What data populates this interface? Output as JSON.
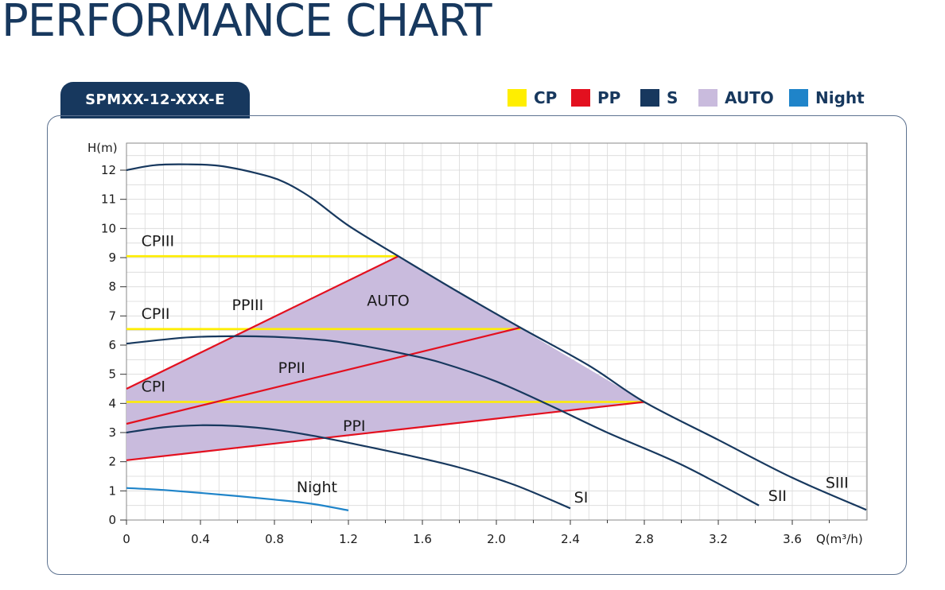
{
  "page_title": "PERFORMANCE CHART",
  "model_tab": "SPMXX-12-XXX-E",
  "legend": [
    {
      "label": "CP",
      "color": "#ffee00",
      "icon": "yellow-swatch"
    },
    {
      "label": "PP",
      "color": "#e3101f",
      "icon": "red-swatch"
    },
    {
      "label": "S",
      "color": "#17385e",
      "icon": "navy-swatch"
    },
    {
      "label": "AUTO",
      "color": "#c9bbdd",
      "icon": "lavender-swatch"
    },
    {
      "label": "Night",
      "color": "#1f84c9",
      "icon": "blue-swatch"
    }
  ],
  "chart_data": {
    "type": "line",
    "xlabel": "Q(m³/h)",
    "ylabel": "H(m)",
    "xlim": [
      0,
      4.0
    ],
    "ylim": [
      0,
      13
    ],
    "grid": true,
    "x_ticks": [
      "0",
      "0.4",
      "0.8",
      "1.2",
      "1.6",
      "2.0",
      "2.4",
      "2.8",
      "3.2",
      "3.6"
    ],
    "y_ticks": [
      "0",
      "1",
      "2",
      "3",
      "4",
      "5",
      "6",
      "7",
      "8",
      "9",
      "10",
      "11",
      "12"
    ],
    "auto_region": {
      "label": "AUTO",
      "color": "#c9bbdd",
      "points": [
        [
          0,
          2.05
        ],
        [
          0,
          4.5
        ],
        [
          1.47,
          9.05
        ],
        [
          2.8,
          4.05
        ]
      ]
    },
    "series": [
      {
        "name": "SIII",
        "group": "S",
        "color": "#17385e",
        "points": [
          [
            0,
            12.0
          ],
          [
            0.15,
            12.17
          ],
          [
            0.33,
            12.2
          ],
          [
            0.5,
            12.15
          ],
          [
            0.7,
            11.9
          ],
          [
            0.85,
            11.6
          ],
          [
            1.0,
            11.05
          ],
          [
            1.2,
            10.1
          ],
          [
            1.47,
            9.05
          ],
          [
            1.8,
            7.8
          ],
          [
            2.13,
            6.6
          ],
          [
            2.5,
            5.3
          ],
          [
            2.8,
            4.05
          ],
          [
            3.2,
            2.75
          ],
          [
            3.6,
            1.45
          ],
          [
            4.0,
            0.35
          ]
        ]
      },
      {
        "name": "SII",
        "group": "S",
        "color": "#17385e",
        "points": [
          [
            0,
            6.05
          ],
          [
            0.3,
            6.25
          ],
          [
            0.5,
            6.3
          ],
          [
            0.7,
            6.3
          ],
          [
            0.9,
            6.25
          ],
          [
            1.1,
            6.15
          ],
          [
            1.3,
            5.95
          ],
          [
            1.5,
            5.7
          ],
          [
            1.7,
            5.4
          ],
          [
            2.0,
            4.75
          ],
          [
            2.3,
            3.9
          ],
          [
            2.6,
            3.0
          ],
          [
            3.0,
            1.9
          ],
          [
            3.42,
            0.5
          ]
        ]
      },
      {
        "name": "SI",
        "group": "S",
        "color": "#17385e",
        "points": [
          [
            0,
            3.0
          ],
          [
            0.2,
            3.18
          ],
          [
            0.4,
            3.25
          ],
          [
            0.6,
            3.22
          ],
          [
            0.8,
            3.1
          ],
          [
            1.0,
            2.9
          ],
          [
            1.2,
            2.65
          ],
          [
            1.5,
            2.25
          ],
          [
            1.8,
            1.8
          ],
          [
            2.1,
            1.2
          ],
          [
            2.4,
            0.4
          ]
        ]
      },
      {
        "name": "CPIII",
        "group": "CP",
        "color": "#ffee00",
        "points": [
          [
            0,
            9.05
          ],
          [
            1.47,
            9.05
          ]
        ]
      },
      {
        "name": "CPII",
        "group": "CP",
        "color": "#ffee00",
        "points": [
          [
            0,
            6.55
          ],
          [
            2.13,
            6.55
          ]
        ]
      },
      {
        "name": "CPI",
        "group": "CP",
        "color": "#ffee00",
        "points": [
          [
            0,
            4.05
          ],
          [
            2.8,
            4.05
          ]
        ]
      },
      {
        "name": "PPIII",
        "group": "PP",
        "color": "#e3101f",
        "points": [
          [
            0,
            4.5
          ],
          [
            1.47,
            9.05
          ]
        ]
      },
      {
        "name": "PPII",
        "group": "PP",
        "color": "#e3101f",
        "points": [
          [
            0,
            3.3
          ],
          [
            2.13,
            6.6
          ]
        ]
      },
      {
        "name": "PPI",
        "group": "PP",
        "color": "#e3101f",
        "points": [
          [
            0,
            2.05
          ],
          [
            2.8,
            4.05
          ]
        ]
      },
      {
        "name": "Night",
        "group": "Night",
        "color": "#1f84c9",
        "points": [
          [
            0,
            1.1
          ],
          [
            0.2,
            1.03
          ],
          [
            0.4,
            0.93
          ],
          [
            0.6,
            0.82
          ],
          [
            0.8,
            0.7
          ],
          [
            1.0,
            0.56
          ],
          [
            1.2,
            0.33
          ]
        ]
      }
    ],
    "curve_labels": [
      {
        "text": "CPIII",
        "x": 0.08,
        "y": 9.4
      },
      {
        "text": "CPII",
        "x": 0.08,
        "y": 6.9
      },
      {
        "text": "CPI",
        "x": 0.08,
        "y": 4.4
      },
      {
        "text": "PPIII",
        "x": 0.57,
        "y": 7.2
      },
      {
        "text": "PPII",
        "x": 0.82,
        "y": 5.05
      },
      {
        "text": "PPI",
        "x": 1.17,
        "y": 3.05
      },
      {
        "text": "AUTO",
        "x": 1.3,
        "y": 7.35
      },
      {
        "text": "Night",
        "x": 0.92,
        "y": 0.95
      },
      {
        "text": "SI",
        "x": 2.42,
        "y": 0.6
      },
      {
        "text": "SII",
        "x": 3.47,
        "y": 0.65
      },
      {
        "text": "SIII",
        "x": 3.78,
        "y": 1.1
      }
    ]
  }
}
